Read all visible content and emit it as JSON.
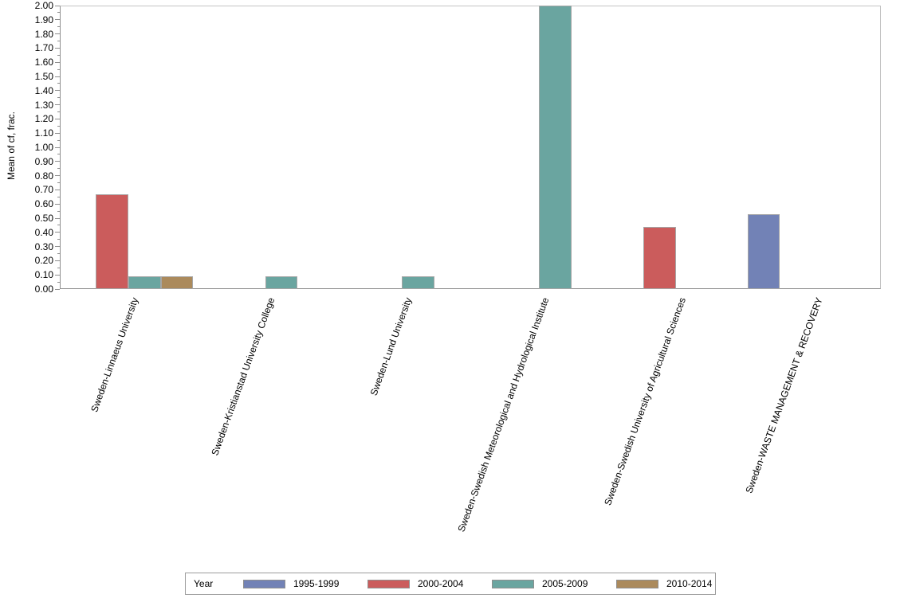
{
  "chart_data": {
    "type": "bar",
    "title": "",
    "xlabel": "",
    "ylabel": "Mean of cf, frac.",
    "ylim": [
      0,
      2.0
    ],
    "ytick_major": 0.1,
    "ytick_minor": 0.05,
    "ytick_labels": [
      "0.00",
      "0.10",
      "0.20",
      "0.30",
      "0.40",
      "0.50",
      "0.60",
      "0.70",
      "0.80",
      "0.90",
      "1.00",
      "1.10",
      "1.20",
      "1.30",
      "1.40",
      "1.50",
      "1.60",
      "1.70",
      "1.80",
      "1.90",
      "2.00"
    ],
    "grid": "off",
    "legend_title": "Year",
    "legend_position": "bottom",
    "categories": [
      "Sweden-Linnaeus University",
      "Sweden-Kristianstad University College",
      "Sweden-Lund University",
      "Sweden-Swedish Meteorological and Hydrological Institute",
      "Sweden-Swedish University of Agricultural Sciences",
      "Sweden-WASTE MANAGEMENT & RECOVERY"
    ],
    "series": [
      {
        "name": "1995-1999",
        "color": "#7282B6",
        "values": [
          null,
          null,
          null,
          null,
          null,
          0.53
        ]
      },
      {
        "name": "2000-2004",
        "color": "#CB5C5C",
        "values": [
          0.67,
          null,
          null,
          null,
          0.44,
          null
        ]
      },
      {
        "name": "2005-2009",
        "color": "#6AA5A0",
        "values": [
          0.09,
          0.09,
          0.09,
          2.0,
          null,
          null
        ]
      },
      {
        "name": "2010-2014",
        "color": "#AB8A5C",
        "values": [
          0.09,
          null,
          null,
          null,
          null,
          null
        ]
      }
    ],
    "bar_border_color": "#A6A6A6",
    "axis_color": "#8F8F8F"
  }
}
